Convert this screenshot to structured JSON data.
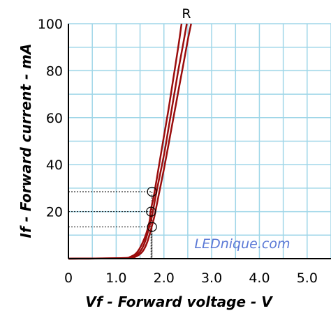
{
  "chart_data": {
    "type": "line",
    "title": "",
    "xlabel": "Vf - Forward voltage - V",
    "ylabel": "If - Forward current - mA",
    "xlim": [
      0,
      5.5
    ],
    "ylim": [
      0,
      100
    ],
    "x_ticks": [
      {
        "value": 0,
        "label": "0"
      },
      {
        "value": 1,
        "label": "1.0"
      },
      {
        "value": 2,
        "label": "2.0"
      },
      {
        "value": 3,
        "label": "3.0"
      },
      {
        "value": 4,
        "label": "4.0"
      },
      {
        "value": 5,
        "label": "5.0"
      }
    ],
    "y_ticks": [
      {
        "value": 20,
        "label": "20"
      },
      {
        "value": 40,
        "label": "40"
      },
      {
        "value": 60,
        "label": "60"
      },
      {
        "value": 80,
        "label": "80"
      },
      {
        "value": 100,
        "label": "100"
      }
    ],
    "grid": true,
    "grid_step": {
      "x": 0.5,
      "y": 10
    },
    "series": [
      {
        "points": [
          [
            0,
            0
          ],
          [
            1.1,
            0.2
          ],
          [
            1.3,
            0.8
          ],
          [
            1.45,
            3
          ],
          [
            1.6,
            9
          ],
          [
            1.7,
            16
          ],
          [
            1.72,
            20
          ],
          [
            1.8,
            28
          ],
          [
            1.9,
            40
          ],
          [
            2.0,
            52
          ],
          [
            2.1,
            64
          ],
          [
            2.2,
            77
          ],
          [
            2.3,
            90
          ],
          [
            2.37,
            100
          ]
        ]
      },
      {
        "points": [
          [
            0,
            0
          ],
          [
            1.15,
            0.2
          ],
          [
            1.35,
            0.8
          ],
          [
            1.5,
            3
          ],
          [
            1.6,
            7
          ],
          [
            1.7,
            14
          ],
          [
            1.75,
            18
          ],
          [
            1.85,
            29
          ],
          [
            2.0,
            44
          ],
          [
            2.1,
            56
          ],
          [
            2.2,
            68
          ],
          [
            2.3,
            80
          ],
          [
            2.4,
            91
          ],
          [
            2.48,
            100
          ]
        ]
      },
      {
        "points": [
          [
            0,
            0
          ],
          [
            1.2,
            0.2
          ],
          [
            1.4,
            0.8
          ],
          [
            1.55,
            3
          ],
          [
            1.65,
            7
          ],
          [
            1.75,
            14
          ],
          [
            1.8,
            18
          ],
          [
            1.9,
            28
          ],
          [
            2.0,
            38
          ],
          [
            2.1,
            49
          ],
          [
            2.2,
            60
          ],
          [
            2.3,
            71
          ],
          [
            2.4,
            82
          ],
          [
            2.5,
            93
          ],
          [
            2.57,
            100
          ]
        ]
      }
    ],
    "markers": [
      {
        "x": 1.75,
        "y": 28.5
      },
      {
        "x": 1.73,
        "y": 20
      },
      {
        "x": 1.75,
        "y": 13.5
      }
    ],
    "annotation": "R",
    "watermark": "LEDnique.com",
    "colors": {
      "curve": "#9b0d0d",
      "grid": "#9fd6e8",
      "axis": "#000000",
      "watermark": "#5b79d6"
    }
  }
}
